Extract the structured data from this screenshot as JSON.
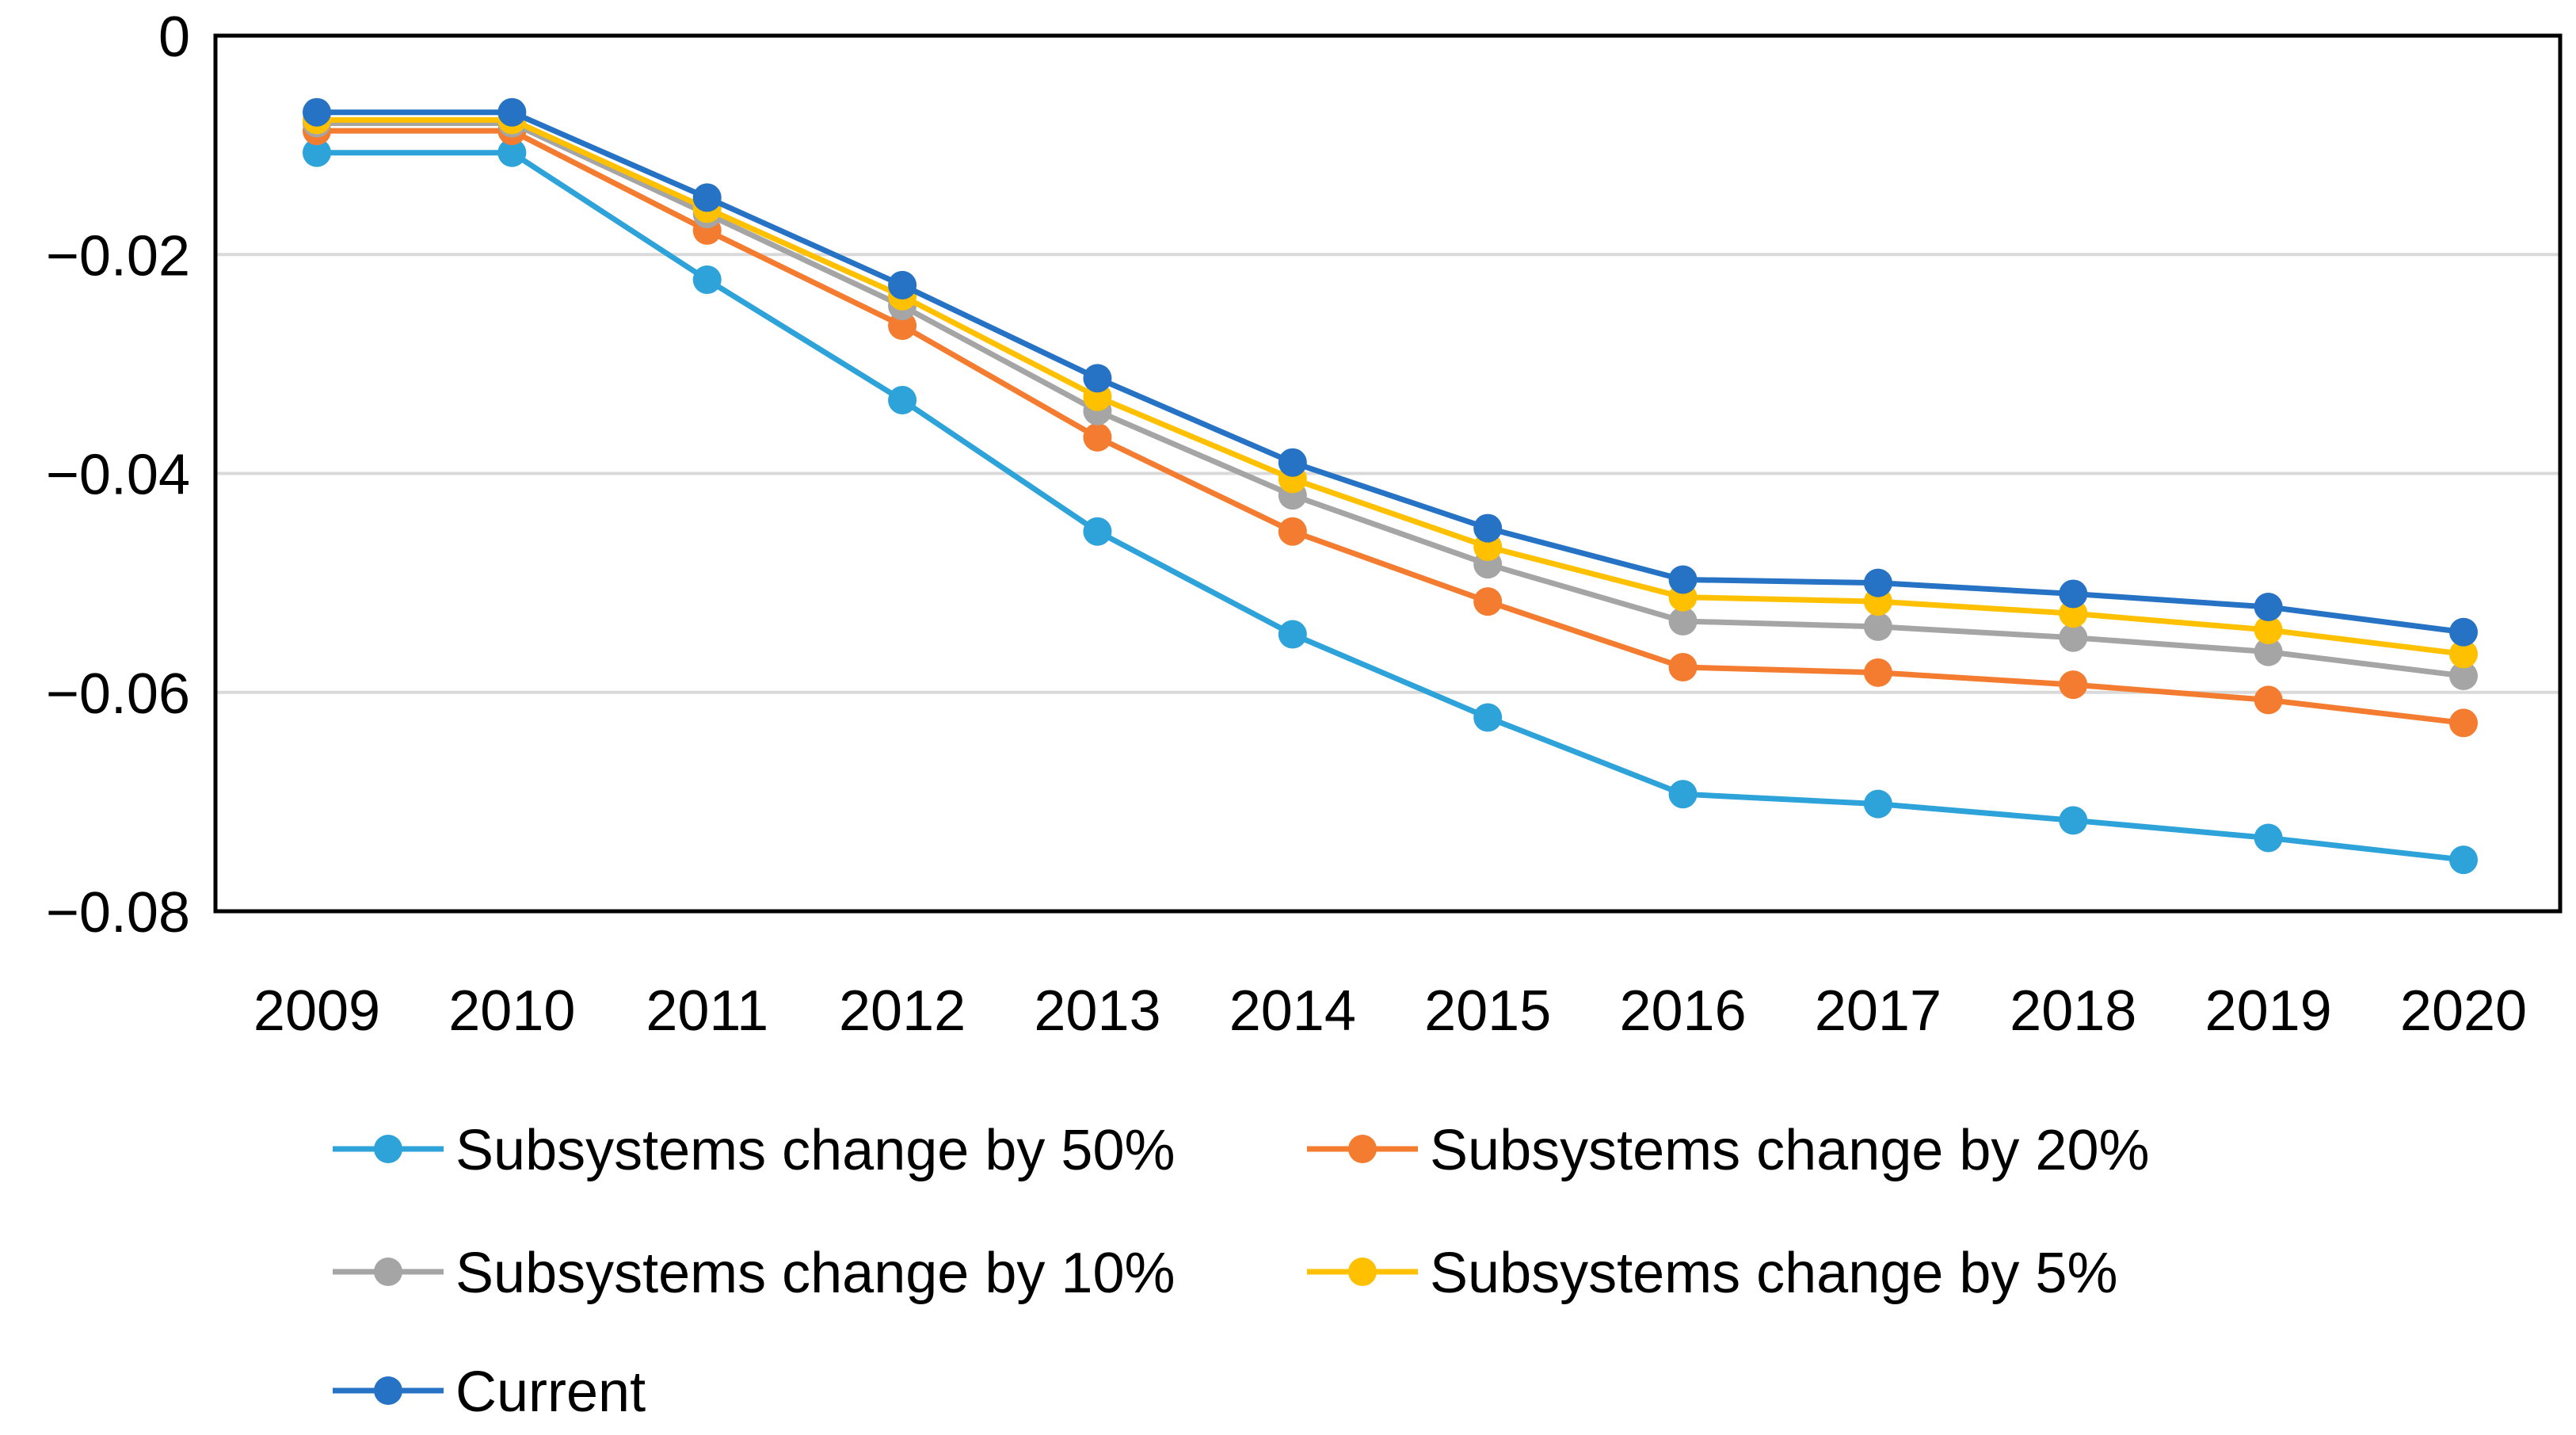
{
  "chart_data": {
    "type": "line",
    "title": "",
    "xlabel": "",
    "ylabel": "",
    "categories": [
      "2009",
      "2010",
      "2011",
      "2012",
      "2013",
      "2014",
      "2015",
      "2016",
      "2017",
      "2018",
      "2019",
      "2020"
    ],
    "ylim": [
      -0.08,
      0
    ],
    "yticks": [
      0,
      -0.02,
      -0.04,
      -0.06,
      -0.08
    ],
    "ytick_labels": [
      "0",
      "−0.02",
      "−0.04",
      "−0.06",
      "−0.08"
    ],
    "grid": true,
    "legend_position": "bottom",
    "series": [
      {
        "name": "Subsystems change by 50%",
        "color": "#2EA3DA",
        "values": [
          -0.0107,
          -0.0107,
          -0.0223,
          -0.0333,
          -0.0453,
          -0.0547,
          -0.0623,
          -0.0693,
          -0.0702,
          -0.0717,
          -0.0733,
          -0.0753
        ]
      },
      {
        "name": "Subsystems change by 20%",
        "color": "#F47C30",
        "values": [
          -0.0087,
          -0.0087,
          -0.0178,
          -0.0265,
          -0.0367,
          -0.0453,
          -0.0517,
          -0.0577,
          -0.0582,
          -0.0593,
          -0.0607,
          -0.0628
        ]
      },
      {
        "name": "Subsystems change by 10%",
        "color": "#A5A5A5",
        "values": [
          -0.008,
          -0.008,
          -0.0163,
          -0.0247,
          -0.0343,
          -0.042,
          -0.0483,
          -0.0535,
          -0.054,
          -0.055,
          -0.0563,
          -0.0585
        ]
      },
      {
        "name": "Subsystems change by 5%",
        "color": "#FFC000",
        "values": [
          -0.0077,
          -0.0077,
          -0.0158,
          -0.0238,
          -0.033,
          -0.0405,
          -0.0467,
          -0.0513,
          -0.0517,
          -0.0528,
          -0.0543,
          -0.0565
        ]
      },
      {
        "name": "Current",
        "color": "#2672C4",
        "values": [
          -0.007,
          -0.007,
          -0.0148,
          -0.0228,
          -0.0313,
          -0.039,
          -0.045,
          -0.0497,
          -0.05,
          -0.051,
          -0.0522,
          -0.0545
        ]
      }
    ]
  }
}
